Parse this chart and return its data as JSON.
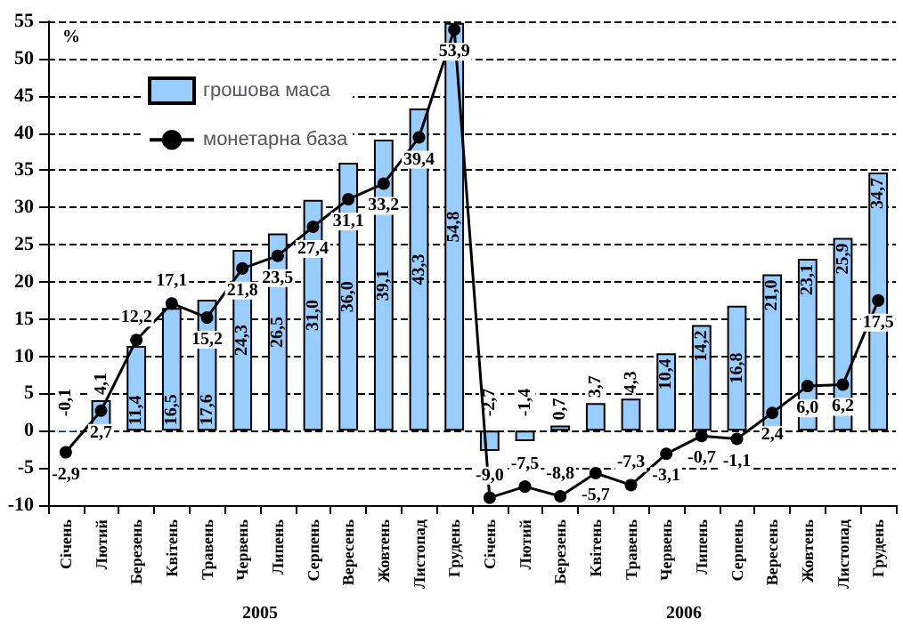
{
  "chart_data": {
    "type": "bar",
    "ylabel": "%",
    "categories": [
      "Січень",
      "Лютий",
      "Березень",
      "Квітень",
      "Травень",
      "Червень",
      "Липень",
      "Серпень",
      "Вересень",
      "Жовтень",
      "Листопад",
      "Грудень",
      "Січень",
      "Лютий",
      "Березень",
      "Квітень",
      "Травень",
      "Червень",
      "Липень",
      "Серпень",
      "Вересень",
      "Жовтень",
      "Листопад",
      "Грудень"
    ],
    "series": [
      {
        "name": "грошова маса",
        "type": "bar",
        "color": "#99ccff",
        "values": [
          -0.1,
          4.1,
          11.4,
          16.5,
          17.6,
          24.3,
          26.5,
          31.0,
          36.0,
          39.1,
          43.3,
          54.8,
          -2.7,
          -1.4,
          0.7,
          3.7,
          4.3,
          10.4,
          14.2,
          16.8,
          21.0,
          23.1,
          25.9,
          34.7
        ],
        "value_labels": [
          "-0,1",
          "4,1",
          "11,4",
          "16,5",
          "17,6",
          "24,3",
          "26,5",
          "31,0",
          "36,0",
          "39,1",
          "43,3",
          "54,8",
          "-2,7",
          "-1,4",
          "0,7",
          "3,7",
          "4,3",
          "10,4",
          "14,2",
          "16,8",
          "21,0",
          "23,1",
          "25,9",
          "34,7"
        ]
      },
      {
        "name": "монетарна база",
        "type": "line",
        "color": "#000000",
        "values": [
          -2.9,
          2.7,
          12.2,
          17.1,
          15.2,
          21.8,
          23.5,
          27.4,
          31.1,
          33.2,
          39.4,
          53.9,
          -9.0,
          -7.5,
          -8.8,
          -5.7,
          -7.3,
          -3.1,
          -0.7,
          -1.1,
          2.4,
          6.0,
          6.2,
          17.5
        ],
        "value_labels": [
          "-2,9",
          "2,7",
          "12,2",
          "17,1",
          "15,2",
          "21,8",
          "23,5",
          "27,4",
          "31,1",
          "33,2",
          "39,4",
          "53,9",
          "-9,0",
          "-7,5",
          "-8,8",
          "-5,7",
          "-7,3",
          "-3,1",
          "-0,7",
          "-1,1",
          "2,4",
          "6,0",
          "6,2",
          "17,5"
        ]
      }
    ],
    "ylim": [
      -10,
      55
    ],
    "yticks": [
      -10,
      -5,
      0,
      5,
      10,
      15,
      20,
      25,
      30,
      35,
      40,
      45,
      50,
      55
    ],
    "grid": "y",
    "legend": "top left",
    "marker": "circle",
    "line_style": "solid",
    "annotations": [
      "2005",
      "2006"
    ]
  }
}
